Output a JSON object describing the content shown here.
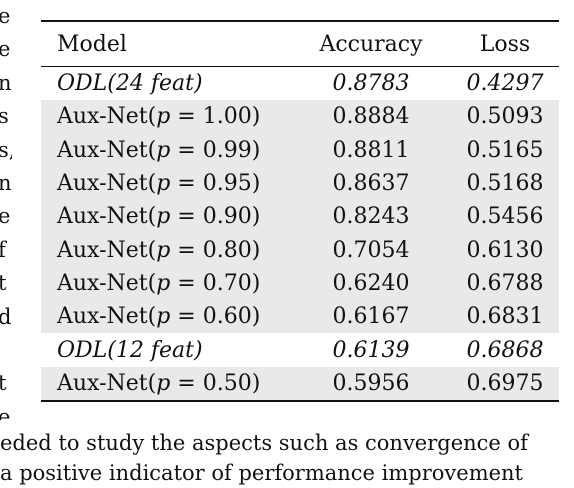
{
  "left_fragments": [
    "e",
    "e",
    "n",
    "s",
    "s,",
    "n",
    "e",
    "f",
    "t",
    "d",
    "",
    "t",
    "e"
  ],
  "table": {
    "headers": [
      "Model",
      "Accuracy",
      "Loss"
    ],
    "rows": [
      {
        "model": "ODL(24 feat)",
        "p": "",
        "accuracy": "0.8783",
        "loss": "0.4297",
        "italic": true,
        "shaded": false
      },
      {
        "model": "Aux-Net(",
        "p": "1.00",
        "accuracy": "0.8884",
        "loss": "0.5093",
        "italic": false,
        "shaded": true
      },
      {
        "model": "Aux-Net(",
        "p": "0.99",
        "accuracy": "0.8811",
        "loss": "0.5165",
        "italic": false,
        "shaded": true
      },
      {
        "model": "Aux-Net(",
        "p": "0.95",
        "accuracy": "0.8637",
        "loss": "0.5168",
        "italic": false,
        "shaded": true
      },
      {
        "model": "Aux-Net(",
        "p": "0.90",
        "accuracy": "0.8243",
        "loss": "0.5456",
        "italic": false,
        "shaded": true
      },
      {
        "model": "Aux-Net(",
        "p": "0.80",
        "accuracy": "0.7054",
        "loss": "0.6130",
        "italic": false,
        "shaded": true
      },
      {
        "model": "Aux-Net(",
        "p": "0.70",
        "accuracy": "0.6240",
        "loss": "0.6788",
        "italic": false,
        "shaded": true
      },
      {
        "model": "Aux-Net(",
        "p": "0.60",
        "accuracy": "0.6167",
        "loss": "0.6831",
        "italic": false,
        "shaded": true
      },
      {
        "model": "ODL(12 feat)",
        "p": "",
        "accuracy": "0.6139",
        "loss": "0.6868",
        "italic": true,
        "shaded": false
      },
      {
        "model": "Aux-Net(",
        "p": "0.50",
        "accuracy": "0.5956",
        "loss": "0.6975",
        "italic": false,
        "shaded": true
      }
    ]
  },
  "bottom_lines": [
    "eded to study the aspects such as convergence of",
    "a positive indicator of performance improvement"
  ]
}
